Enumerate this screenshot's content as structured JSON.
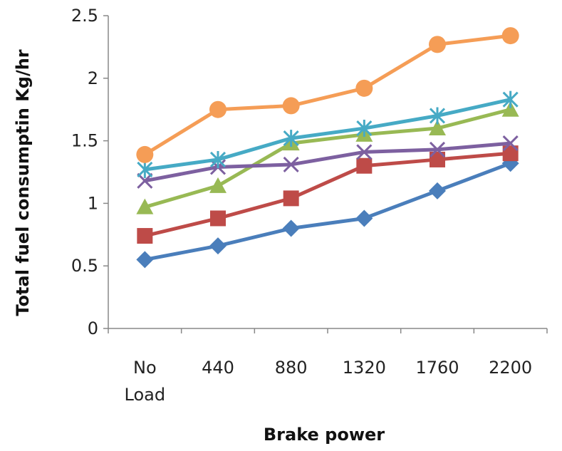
{
  "chart_data": {
    "type": "line",
    "title": "",
    "xlabel": "Brake power",
    "ylabel": "Total fuel consumptin Kg/hr",
    "categories": [
      [
        "No",
        "Load"
      ],
      [
        "440"
      ],
      [
        "880"
      ],
      [
        "1320"
      ],
      [
        "1760"
      ],
      [
        "2200"
      ]
    ],
    "ylim": [
      0,
      2.5
    ],
    "yticks": [
      "0",
      "0.5",
      "1",
      "1.5",
      "2",
      "2.5"
    ],
    "grid": false,
    "legend": "none",
    "series": [
      {
        "marker": "diamond",
        "color": "#4a7ebb",
        "values": [
          0.55,
          0.66,
          0.8,
          0.88,
          1.1,
          1.32
        ]
      },
      {
        "marker": "square",
        "color": "#be4b48",
        "values": [
          0.74,
          0.88,
          1.04,
          1.3,
          1.35,
          1.4
        ]
      },
      {
        "marker": "triangle",
        "color": "#98b954",
        "values": [
          0.97,
          1.14,
          1.48,
          1.55,
          1.6,
          1.75
        ]
      },
      {
        "marker": "x",
        "color": "#7d60a0",
        "values": [
          1.18,
          1.29,
          1.31,
          1.41,
          1.43,
          1.48
        ]
      },
      {
        "marker": "star",
        "color": "#46aac5",
        "values": [
          1.27,
          1.35,
          1.52,
          1.6,
          1.7,
          1.83
        ]
      },
      {
        "marker": "circle",
        "color": "#f59d56",
        "values": [
          1.39,
          1.75,
          1.78,
          1.92,
          2.27,
          2.34
        ]
      }
    ]
  }
}
